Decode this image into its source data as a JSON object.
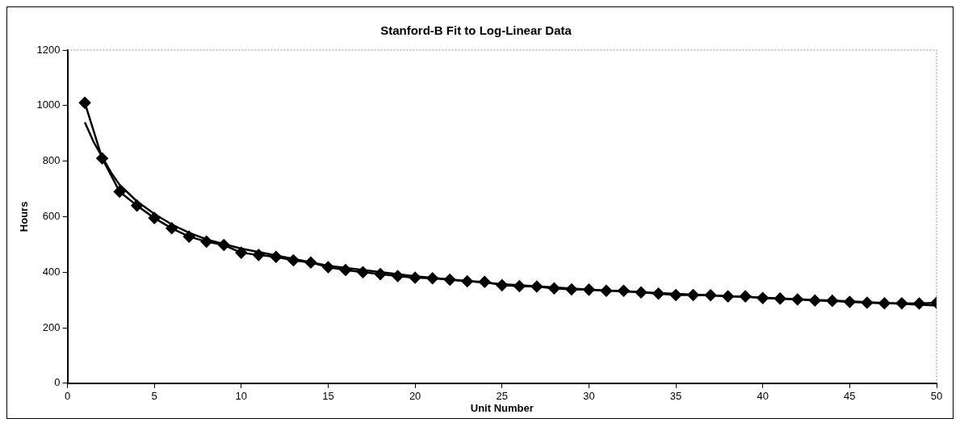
{
  "chart_data": {
    "type": "line",
    "title": "Stanford-B Fit to Log-Linear Data",
    "xlabel": "Unit Number",
    "ylabel": "Hours",
    "xlim": [
      0,
      50
    ],
    "xticks": [
      0,
      5,
      10,
      15,
      20,
      25,
      30,
      35,
      40,
      45,
      50
    ],
    "ylim": [
      0,
      1200
    ],
    "yticks": [
      0,
      200,
      400,
      600,
      800,
      1000,
      1200
    ],
    "grid": false,
    "legend": false,
    "series": [
      {
        "type": "line",
        "marker": "diamond",
        "color": "#000000",
        "x": [
          1,
          2,
          3,
          4,
          5,
          6,
          7,
          8,
          9,
          10,
          11,
          12,
          13,
          14,
          15,
          16,
          17,
          18,
          19,
          20,
          21,
          22,
          23,
          24,
          25,
          26,
          27,
          28,
          29,
          30,
          31,
          32,
          33,
          34,
          35,
          36,
          37,
          38,
          39,
          40,
          41,
          42,
          43,
          44,
          45,
          46,
          47,
          48,
          49,
          50
        ],
        "values": [
          1010,
          810,
          690,
          640,
          595,
          558,
          528,
          510,
          498,
          470,
          462,
          455,
          443,
          435,
          418,
          408,
          400,
          393,
          386,
          380,
          378,
          373,
          367,
          365,
          353,
          350,
          348,
          342,
          338,
          337,
          333,
          333,
          327,
          323,
          318,
          318,
          317,
          313,
          313,
          307,
          305,
          302,
          298,
          297,
          293,
          290,
          288,
          288,
          287,
          290
        ]
      },
      {
        "type": "line",
        "marker": "none",
        "color": "#000000",
        "x": [
          1,
          1.5,
          2,
          2.5,
          3,
          4,
          5,
          6,
          7,
          8,
          10,
          12,
          15,
          20,
          25,
          30,
          35,
          40,
          45,
          50
        ],
        "values": [
          940,
          870,
          815,
          760,
          715,
          655,
          610,
          572,
          542,
          518,
          485,
          460,
          423,
          385,
          357,
          337,
          322,
          308,
          295,
          280
        ]
      }
    ]
  }
}
